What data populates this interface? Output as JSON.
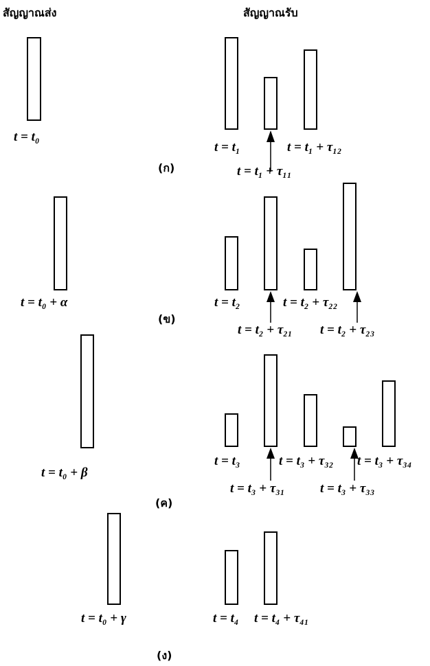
{
  "header": {
    "transmit": "สัญญาณส่ง",
    "receive": "สัญญาณรับ"
  },
  "panels": [
    {
      "caption": "(ก)",
      "transmit_label": "t = t₀",
      "receive_labels": [
        "t = t₁",
        "t = t₁ + τ₁₂",
        "t = t₁ + τ₁₁"
      ]
    },
    {
      "caption": "(ข)",
      "transmit_label": "t = t₀ + α",
      "receive_labels": [
        "t = t₂",
        "t = t₂ + τ₂₂",
        "t = t₂ + τ₂₁",
        "t = t₂ + τ₂₃"
      ]
    },
    {
      "caption": "(ค)",
      "transmit_label": "t = t₀ + β",
      "receive_labels": [
        "t = t₃",
        "t = t₃ + τ₃₂",
        "t = t₃ + τ₃₄",
        "t = t₃ + τ₃₁",
        "t = t₃ + τ₃₃"
      ]
    },
    {
      "caption": "(ง)",
      "transmit_label": "t = t₀ + γ",
      "receive_labels": [
        "t = t₄",
        "t = t₄ + τ₄₁"
      ]
    }
  ]
}
